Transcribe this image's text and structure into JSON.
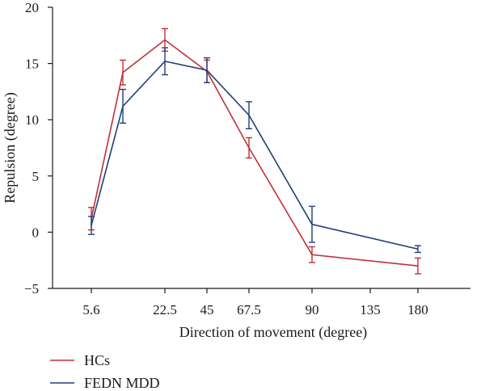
{
  "chart_data": {
    "type": "line",
    "xlabel": "Direction of movement (degree)",
    "ylabel": "Repulsion (degree)",
    "categories": [
      "5.6",
      "11.25",
      "22.5",
      "45",
      "67.5",
      "90",
      "135",
      "180"
    ],
    "tick_labels": [
      "5.6",
      "22.5",
      "45",
      "67.5",
      "90",
      "135",
      "180"
    ],
    "ylim": [
      -5,
      20
    ],
    "yticks": [
      -5,
      0,
      5,
      10,
      15,
      20
    ],
    "grid": false,
    "legend_position": "bottom-left",
    "series": [
      {
        "name": "HCs",
        "color": "#c0303a",
        "x": [
          "5.6",
          "11.25",
          "22.5",
          "45",
          "67.5",
          "90",
          "180"
        ],
        "values": [
          1.2,
          14.2,
          17.1,
          14.3,
          7.5,
          -2.0,
          -3.0
        ],
        "errors": [
          1.0,
          1.1,
          1.0,
          1.0,
          0.9,
          0.7,
          0.7
        ]
      },
      {
        "name": "FEDN MDD",
        "color": "#1f3f7a",
        "x": [
          "5.6",
          "11.25",
          "22.5",
          "45",
          "67.5",
          "90",
          "180"
        ],
        "values": [
          0.6,
          11.2,
          15.2,
          14.4,
          10.4,
          0.7,
          -1.5
        ],
        "errors": [
          0.8,
          1.5,
          1.2,
          1.1,
          1.2,
          1.6,
          0.3
        ]
      }
    ]
  }
}
